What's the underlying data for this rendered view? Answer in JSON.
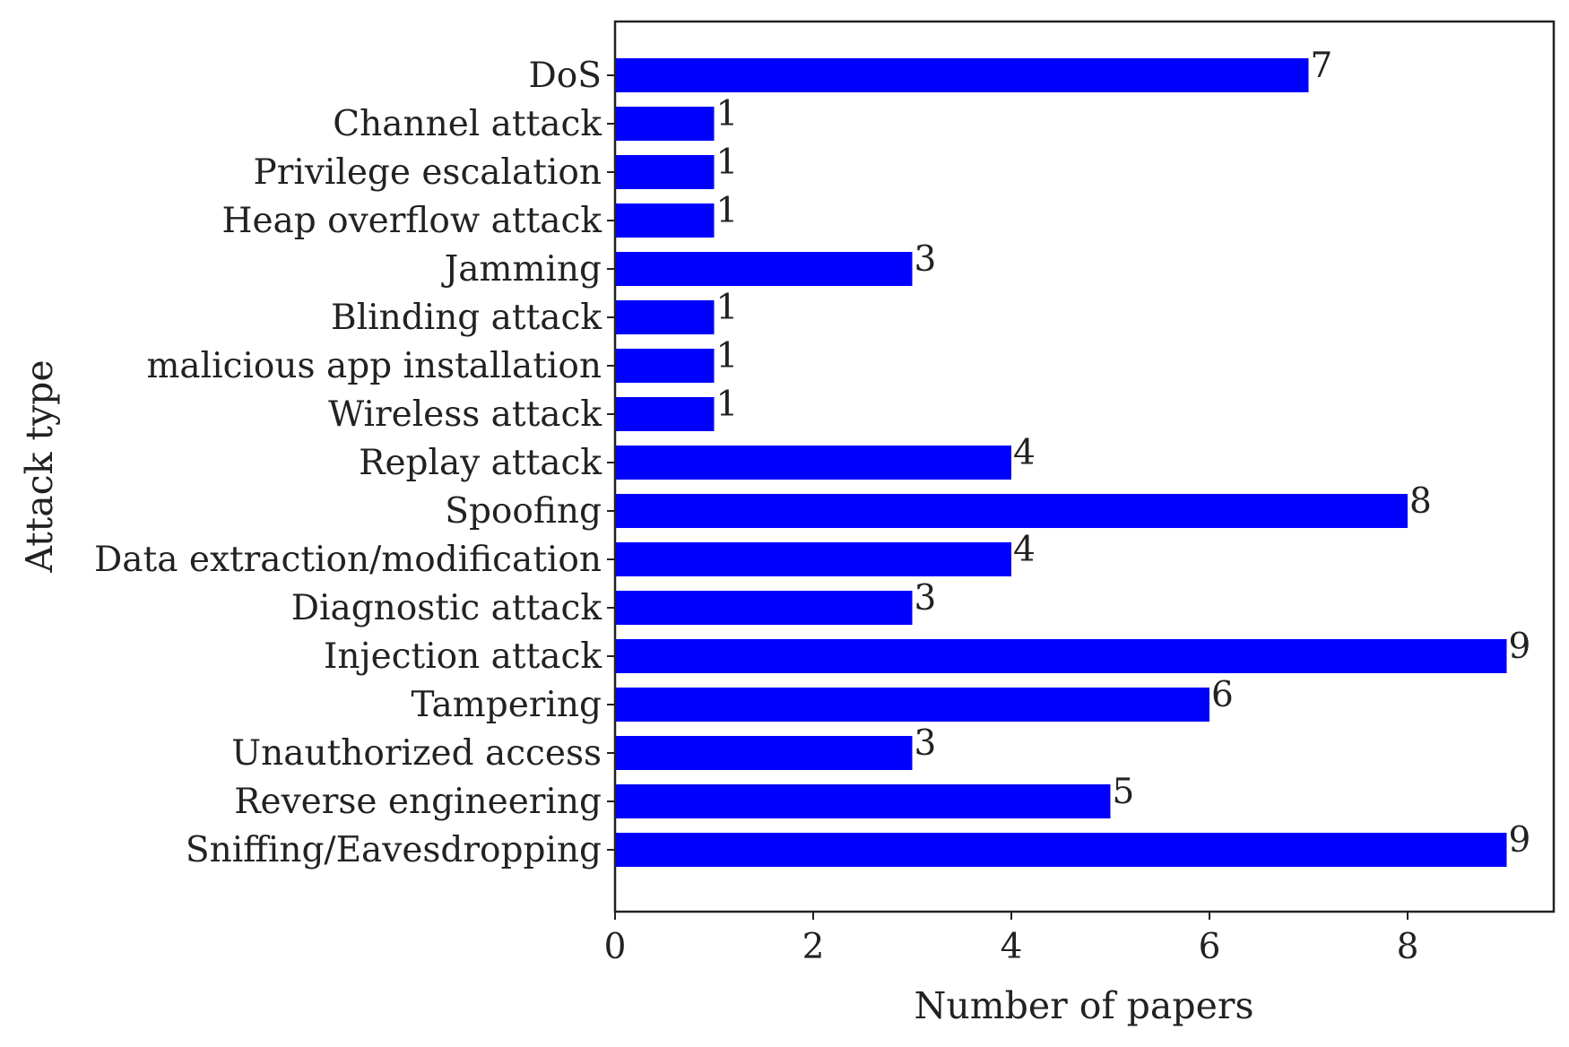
{
  "chart_data": {
    "type": "bar",
    "orientation": "horizontal",
    "categories": [
      "DoS",
      "Channel attack",
      "Privilege escalation",
      "Heap overflow attack",
      "Jamming",
      "Blinding attack",
      "malicious app installation",
      "Wireless attack",
      "Replay attack",
      "Spoofing",
      "Data extraction/modification",
      "Diagnostic attack",
      "Injection attack",
      "Tampering",
      "Unauthorized access",
      "Reverse engineering",
      "Sniffing/Eavesdropping"
    ],
    "values": [
      7,
      1,
      1,
      1,
      3,
      1,
      1,
      1,
      4,
      8,
      4,
      3,
      9,
      6,
      3,
      5,
      9
    ],
    "value_labels": [
      "7",
      "1",
      "1",
      "1",
      "3",
      "1",
      "1",
      "1",
      "4",
      "8",
      "4",
      "3",
      "9",
      "6",
      "3",
      "5",
      "9"
    ],
    "xlabel": "Number of papers",
    "ylabel": "Attack type",
    "xlim": [
      0,
      9.5
    ],
    "xticks": [
      "0",
      "2",
      "4",
      "6",
      "8"
    ],
    "xtick_values": [
      0,
      2,
      4,
      6,
      8
    ],
    "grid": false,
    "bar_color": "#0000ff"
  }
}
